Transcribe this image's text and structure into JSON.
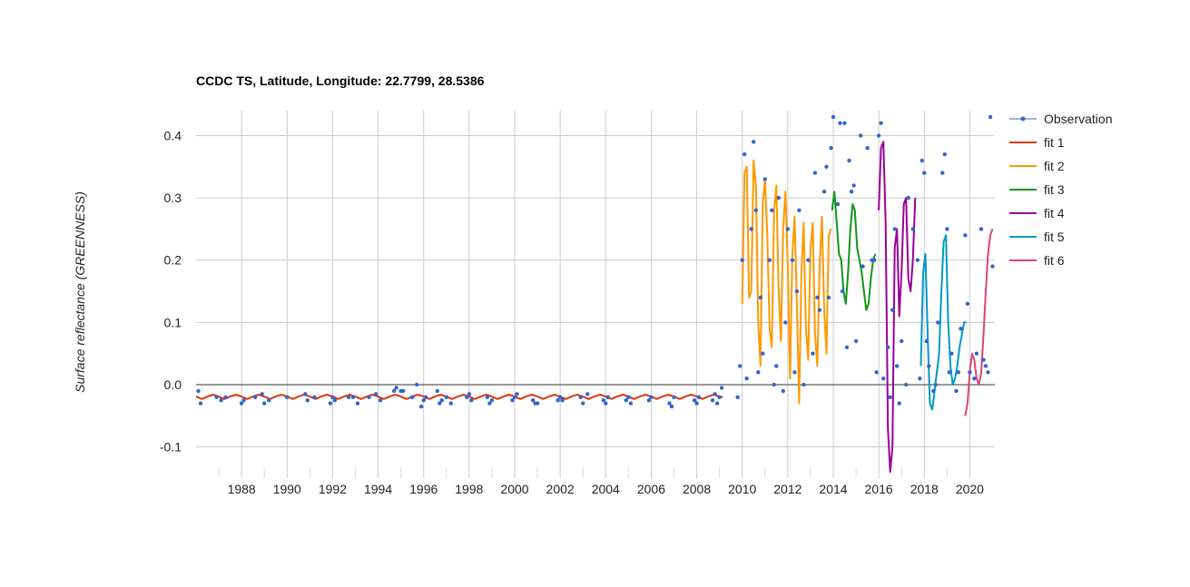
{
  "chart_data": {
    "type": "line",
    "title": "CCDC TS, Latitude, Longitude: 22.7799, 28.5386",
    "xlabel": "",
    "ylabel": "Surface reflectance (GREENNESS)",
    "xlim": [
      1986,
      2021.1
    ],
    "ylim": [
      -0.15,
      0.44
    ],
    "x_ticks": [
      "1988",
      "1990",
      "1992",
      "1994",
      "1996",
      "1998",
      "2000",
      "2002",
      "2004",
      "2006",
      "2008",
      "2010",
      "2012",
      "2014",
      "2016",
      "2018",
      "2020"
    ],
    "y_ticks": [
      "0.4",
      "0.3",
      "0.2",
      "0.1",
      "0.0",
      "-0.1"
    ],
    "grid": true,
    "legend_position": "right",
    "series": [
      {
        "name": "Observation",
        "kind": "points",
        "color": "#3366cc",
        "x": [
          1986.1,
          1986.2,
          1986.9,
          1987.1,
          1987.3,
          1988.0,
          1988.1,
          1988.6,
          1988.9,
          1989.0,
          1989.2,
          1990.0,
          1990.8,
          1990.9,
          1991.2,
          1991.9,
          1992.0,
          1992.1,
          1992.7,
          1992.9,
          1993.1,
          1993.6,
          1993.9,
          1994.1,
          1994.7,
          1994.8,
          1995.0,
          1995.1,
          1995.5,
          1995.7,
          1995.9,
          1996.0,
          1996.1,
          1996.6,
          1996.7,
          1996.8,
          1997.0,
          1997.2,
          1997.9,
          1998.0,
          1998.1,
          1998.8,
          1998.9,
          1999.0,
          1999.9,
          2000.0,
          2000.1,
          2000.8,
          2000.9,
          2001.0,
          2001.9,
          2002.0,
          2002.1,
          2002.9,
          2003.0,
          2003.2,
          2003.9,
          2004.0,
          2004.1,
          2004.9,
          2005.0,
          2005.1,
          2005.9,
          2006.0,
          2006.8,
          2006.9,
          2007.0,
          2007.9,
          2008.0,
          2008.1,
          2008.7,
          2008.8,
          2008.9,
          2009.0,
          2009.1,
          2009.8,
          2009.9,
          2010.0,
          2010.1,
          2010.2,
          2010.4,
          2010.5,
          2010.6,
          2010.7,
          2010.8,
          2010.9,
          2011.0,
          2011.2,
          2011.3,
          2011.4,
          2011.5,
          2011.6,
          2011.8,
          2011.9,
          2012.0,
          2012.2,
          2012.3,
          2012.4,
          2012.5,
          2012.7,
          2012.9,
          2013.1,
          2013.2,
          2013.3,
          2013.4,
          2013.6,
          2013.7,
          2013.8,
          2013.9,
          2014.0,
          2014.2,
          2014.3,
          2014.4,
          2014.5,
          2014.6,
          2014.7,
          2014.8,
          2014.9,
          2015.0,
          2015.2,
          2015.3,
          2015.5,
          2015.7,
          2015.8,
          2015.9,
          2016.0,
          2016.1,
          2016.2,
          2016.4,
          2016.5,
          2016.6,
          2016.7,
          2016.8,
          2016.9,
          2017.0,
          2017.2,
          2017.3,
          2017.5,
          2017.7,
          2017.8,
          2017.9,
          2018.0,
          2018.1,
          2018.2,
          2018.4,
          2018.5,
          2018.6,
          2018.8,
          2018.9,
          2019.0,
          2019.1,
          2019.2,
          2019.4,
          2019.5,
          2019.6,
          2019.8,
          2019.9,
          2020.0,
          2020.2,
          2020.3,
          2020.5,
          2020.6,
          2020.7,
          2020.8,
          2020.9,
          2021.0
        ],
        "y": [
          -0.01,
          -0.03,
          -0.02,
          -0.025,
          -0.02,
          -0.03,
          -0.025,
          -0.02,
          -0.015,
          -0.03,
          -0.025,
          -0.02,
          -0.015,
          -0.025,
          -0.02,
          -0.03,
          -0.02,
          -0.025,
          -0.02,
          -0.02,
          -0.03,
          -0.02,
          -0.015,
          -0.025,
          -0.01,
          -0.005,
          -0.01,
          -0.01,
          -0.02,
          0.0,
          -0.035,
          -0.025,
          -0.02,
          -0.01,
          -0.03,
          -0.025,
          -0.02,
          -0.03,
          -0.02,
          -0.015,
          -0.025,
          -0.02,
          -0.03,
          -0.025,
          -0.025,
          -0.02,
          -0.015,
          -0.025,
          -0.03,
          -0.03,
          -0.025,
          -0.02,
          -0.025,
          -0.02,
          -0.03,
          -0.015,
          -0.025,
          -0.03,
          -0.02,
          -0.025,
          -0.02,
          -0.03,
          -0.025,
          -0.02,
          -0.03,
          -0.035,
          -0.02,
          -0.025,
          -0.03,
          -0.02,
          -0.025,
          -0.015,
          -0.03,
          -0.02,
          -0.005,
          -0.02,
          0.03,
          0.2,
          0.37,
          0.01,
          0.25,
          0.39,
          0.28,
          0.02,
          0.14,
          0.05,
          0.33,
          0.2,
          0.28,
          0.0,
          0.03,
          0.3,
          -0.01,
          0.1,
          0.25,
          0.2,
          0.02,
          0.15,
          0.28,
          0.0,
          0.2,
          0.05,
          0.34,
          0.14,
          0.12,
          0.31,
          0.35,
          0.14,
          0.38,
          0.43,
          0.29,
          0.42,
          0.15,
          0.42,
          0.06,
          0.36,
          0.31,
          0.32,
          0.07,
          0.4,
          0.19,
          0.38,
          0.2,
          0.2,
          0.02,
          0.4,
          0.42,
          0.01,
          0.06,
          -0.02,
          0.12,
          0.25,
          0.03,
          -0.03,
          0.07,
          0.0,
          0.3,
          0.25,
          0.2,
          0.01,
          0.36,
          0.34,
          0.07,
          0.03,
          -0.01,
          0.0,
          0.1,
          0.34,
          0.37,
          0.25,
          0.02,
          0.05,
          -0.01,
          0.02,
          0.09,
          0.24,
          0.13,
          0.02,
          0.01,
          0.05,
          0.25,
          0.04,
          0.03,
          0.02,
          0.43,
          0.19
        ]
      },
      {
        "name": "fit 1",
        "kind": "line",
        "color": "#dc3912",
        "x": [
          1986.0,
          1986.25,
          1986.5,
          1986.75,
          1987.0,
          1987.25,
          1987.5,
          1987.75,
          1988.0,
          1988.25,
          1988.5,
          1988.75,
          1989.0,
          1989.25,
          1989.5,
          1989.75,
          1990.0,
          1990.25,
          1990.5,
          1990.75,
          1991.0,
          1991.25,
          1991.5,
          1991.75,
          1992.0,
          1992.25,
          1992.5,
          1992.75,
          1993.0,
          1993.25,
          1993.5,
          1993.75,
          1994.0,
          1994.25,
          1994.5,
          1994.75,
          1995.0,
          1995.25,
          1995.5,
          1995.75,
          1996.0,
          1996.25,
          1996.5,
          1996.75,
          1997.0,
          1997.25,
          1997.5,
          1997.75,
          1998.0,
          1998.25,
          1998.5,
          1998.75,
          1999.0,
          1999.25,
          1999.5,
          1999.75,
          2000.0,
          2000.25,
          2000.5,
          2000.75,
          2001.0,
          2001.25,
          2001.5,
          2001.75,
          2002.0,
          2002.25,
          2002.5,
          2002.75,
          2003.0,
          2003.25,
          2003.5,
          2003.75,
          2004.0,
          2004.25,
          2004.5,
          2004.75,
          2005.0,
          2005.25,
          2005.5,
          2005.75,
          2006.0,
          2006.25,
          2006.5,
          2006.75,
          2007.0,
          2007.25,
          2007.5,
          2007.75,
          2008.0,
          2008.25,
          2008.5,
          2008.75,
          2009.0,
          2009.15
        ],
        "y": [
          -0.019,
          -0.023,
          -0.019,
          -0.016,
          -0.019,
          -0.023,
          -0.019,
          -0.016,
          -0.019,
          -0.023,
          -0.019,
          -0.016,
          -0.019,
          -0.023,
          -0.019,
          -0.016,
          -0.019,
          -0.023,
          -0.019,
          -0.016,
          -0.019,
          -0.023,
          -0.019,
          -0.016,
          -0.019,
          -0.023,
          -0.019,
          -0.016,
          -0.019,
          -0.023,
          -0.019,
          -0.016,
          -0.019,
          -0.023,
          -0.019,
          -0.016,
          -0.019,
          -0.023,
          -0.019,
          -0.016,
          -0.019,
          -0.023,
          -0.019,
          -0.016,
          -0.019,
          -0.023,
          -0.019,
          -0.016,
          -0.019,
          -0.023,
          -0.019,
          -0.016,
          -0.019,
          -0.023,
          -0.019,
          -0.016,
          -0.019,
          -0.023,
          -0.019,
          -0.016,
          -0.019,
          -0.023,
          -0.019,
          -0.016,
          -0.019,
          -0.023,
          -0.019,
          -0.016,
          -0.019,
          -0.023,
          -0.019,
          -0.016,
          -0.019,
          -0.023,
          -0.019,
          -0.016,
          -0.019,
          -0.023,
          -0.019,
          -0.016,
          -0.019,
          -0.023,
          -0.019,
          -0.016,
          -0.019,
          -0.023,
          -0.019,
          -0.016,
          -0.019,
          -0.023,
          -0.019,
          -0.016,
          -0.019,
          -0.02
        ]
      },
      {
        "name": "fit 2",
        "kind": "line",
        "color": "#ff9900",
        "x": [
          2010.0,
          2010.1,
          2010.2,
          2010.3,
          2010.4,
          2010.5,
          2010.6,
          2010.7,
          2010.8,
          2010.9,
          2011.0,
          2011.1,
          2011.2,
          2011.3,
          2011.4,
          2011.5,
          2011.6,
          2011.7,
          2011.8,
          2011.9,
          2012.0,
          2012.1,
          2012.2,
          2012.3,
          2012.4,
          2012.5,
          2012.6,
          2012.7,
          2012.8,
          2012.9,
          2013.0,
          2013.1,
          2013.2,
          2013.3,
          2013.4,
          2013.5,
          2013.6,
          2013.7,
          2013.8,
          2013.9
        ],
        "y": [
          0.13,
          0.34,
          0.35,
          0.14,
          0.15,
          0.36,
          0.32,
          0.1,
          0.03,
          0.29,
          0.33,
          0.24,
          0.09,
          0.06,
          0.28,
          0.32,
          0.15,
          0.07,
          0.25,
          0.31,
          0.19,
          0.01,
          0.21,
          0.27,
          0.13,
          -0.03,
          0.18,
          0.26,
          0.09,
          0.04,
          0.22,
          0.26,
          0.08,
          0.03,
          0.19,
          0.27,
          0.12,
          0.05,
          0.24,
          0.25
        ]
      },
      {
        "name": "fit 3",
        "kind": "line",
        "color": "#109618",
        "x": [
          2013.95,
          2014.05,
          2014.15,
          2014.25,
          2014.35,
          2014.45,
          2014.55,
          2014.65,
          2014.75,
          2014.85,
          2014.95,
          2015.05,
          2015.15,
          2015.25,
          2015.35,
          2015.45,
          2015.55,
          2015.65,
          2015.75,
          2015.85
        ],
        "y": [
          0.28,
          0.31,
          0.26,
          0.21,
          0.2,
          0.15,
          0.13,
          0.18,
          0.25,
          0.29,
          0.28,
          0.22,
          0.2,
          0.18,
          0.15,
          0.12,
          0.13,
          0.17,
          0.2,
          0.21
        ]
      },
      {
        "name": "fit 4",
        "kind": "line",
        "color": "#990099",
        "x": [
          2016.0,
          2016.1,
          2016.2,
          2016.3,
          2016.4,
          2016.5,
          2016.6,
          2016.7,
          2016.8,
          2016.9,
          2017.0,
          2017.1,
          2017.2,
          2017.3,
          2017.4,
          2017.5,
          2017.6
        ],
        "y": [
          0.28,
          0.38,
          0.39,
          0.26,
          -0.07,
          -0.14,
          -0.1,
          0.22,
          0.25,
          0.11,
          0.18,
          0.29,
          0.3,
          0.17,
          0.15,
          0.2,
          0.3
        ]
      },
      {
        "name": "fit 5",
        "kind": "line",
        "color": "#0099c6",
        "x": [
          2017.85,
          2017.95,
          2018.05,
          2018.15,
          2018.25,
          2018.35,
          2018.45,
          2018.55,
          2018.65,
          2018.75,
          2018.85,
          2018.95,
          2019.05,
          2019.15,
          2019.25,
          2019.35,
          2019.45,
          2019.55,
          2019.65,
          2019.75,
          2019.85
        ],
        "y": [
          0.03,
          0.18,
          0.21,
          0.08,
          -0.03,
          -0.04,
          -0.01,
          0.02,
          0.05,
          0.15,
          0.23,
          0.24,
          0.1,
          0.03,
          0.0,
          0.01,
          0.03,
          0.06,
          0.08,
          0.1,
          0.1
        ]
      },
      {
        "name": "fit 6",
        "kind": "line",
        "color": "#dd4477",
        "x": [
          2019.8,
          2019.9,
          2020.0,
          2020.1,
          2020.2,
          2020.3,
          2020.4,
          2020.5,
          2020.6,
          2020.7,
          2020.8,
          2020.9,
          2021.0
        ],
        "y": [
          -0.05,
          -0.03,
          0.02,
          0.05,
          0.04,
          0.01,
          0.0,
          0.02,
          0.08,
          0.15,
          0.21,
          0.24,
          0.25
        ]
      }
    ]
  }
}
